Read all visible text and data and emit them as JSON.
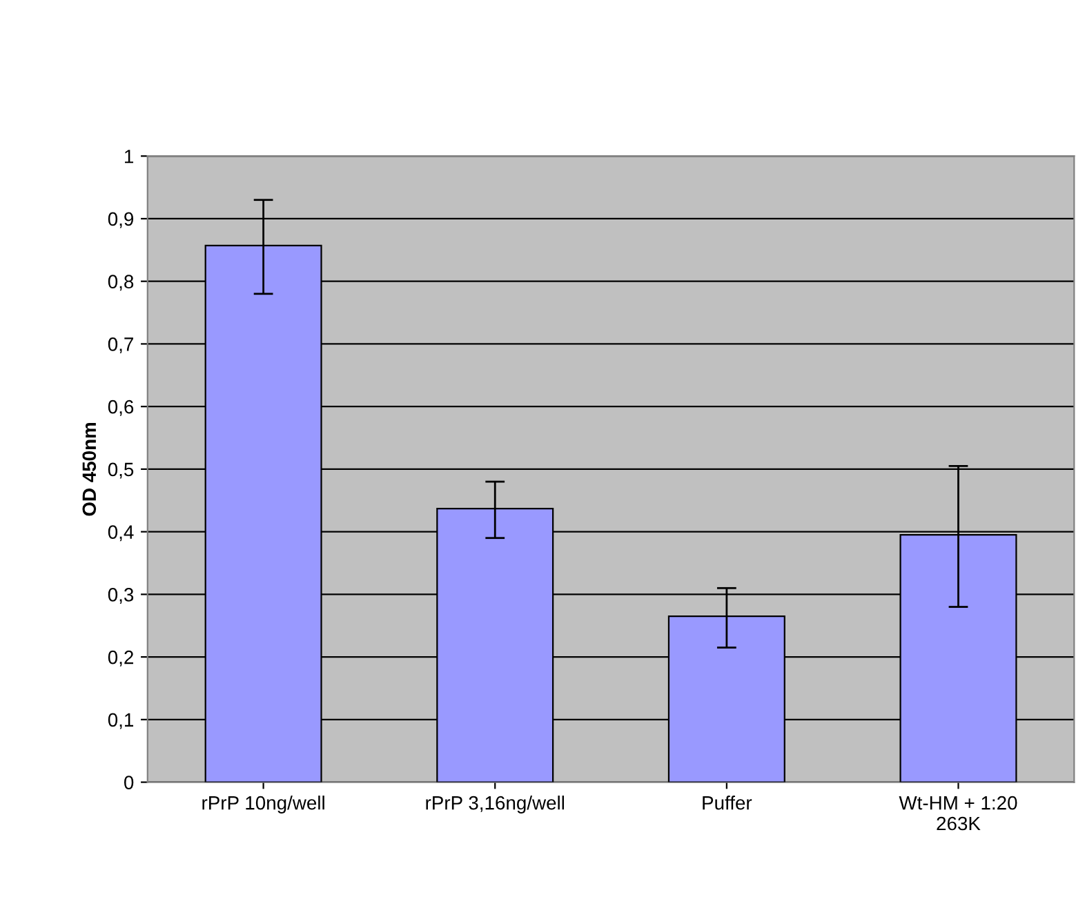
{
  "chart_data": {
    "type": "bar",
    "ylabel": "OD 450nm",
    "categories": [
      "rPrP 10ng/well",
      "rPrP 3,16ng/well",
      "Puffer",
      "Wt-HM + 1:20\n263K"
    ],
    "values": [
      0.857,
      0.437,
      0.265,
      0.395
    ],
    "errors": [
      [
        0.78,
        0.93
      ],
      [
        0.39,
        0.48
      ],
      [
        0.215,
        0.31
      ],
      [
        0.28,
        0.505
      ]
    ],
    "color": "#9999ff",
    "ylim": [
      0,
      1
    ],
    "yticks": [
      0,
      {
        "value": 0.1,
        "label": "0,1"
      },
      {
        "value": 0.2,
        "label": "0,2"
      },
      {
        "value": 0.3,
        "label": "0,3"
      },
      {
        "value": 0.4,
        "label": "0,4"
      },
      {
        "value": 0.5,
        "label": "0,5"
      },
      {
        "value": 0.6,
        "label": "0,6"
      },
      {
        "value": 0.7,
        "label": "0,7"
      },
      {
        "value": 0.8,
        "label": "0,8"
      },
      {
        "value": 0.9,
        "label": "0,9"
      },
      1
    ],
    "grid": "y",
    "legend": false
  }
}
